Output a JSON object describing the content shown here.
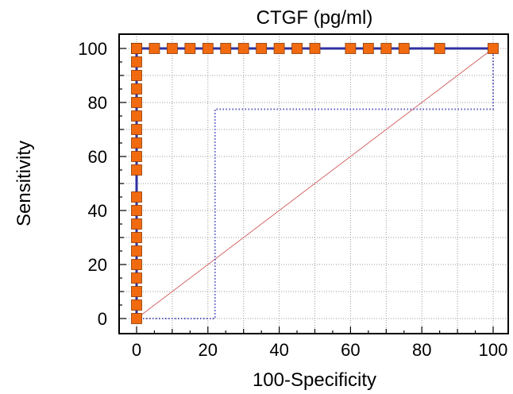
{
  "chart_data": {
    "type": "line",
    "title": "CTGF (pg/ml)",
    "xlabel": "100-Specificity",
    "ylabel": "Sensitivity",
    "xlim": [
      0,
      100
    ],
    "ylim": [
      0,
      100
    ],
    "xticks": [
      "0",
      "20",
      "40",
      "60",
      "80",
      "100"
    ],
    "yticks": [
      "0",
      "20",
      "40",
      "60",
      "80",
      "100"
    ],
    "grid": true,
    "legend": "none",
    "series": [
      {
        "style": "solid",
        "markers": "square",
        "color": "#3030a0",
        "marker_color": "#f26a10",
        "x": [
          0,
          0,
          0,
          0,
          0,
          0,
          0,
          0,
          0,
          0,
          0,
          0,
          0,
          0,
          0,
          0,
          0,
          0,
          0,
          0,
          0,
          0,
          5,
          10,
          15,
          20,
          25,
          30,
          35,
          40,
          45,
          50,
          60,
          65,
          70,
          75,
          85,
          100
        ],
        "y": [
          0,
          5,
          10,
          15,
          20,
          25,
          30,
          35,
          40,
          45,
          55,
          60,
          65,
          70,
          75,
          80,
          85,
          90,
          95,
          100,
          100,
          100,
          100,
          100,
          100,
          100,
          100,
          100,
          100,
          100,
          100,
          100,
          100,
          100,
          100,
          100,
          100,
          100
        ]
      },
      {
        "style": "dotted",
        "color": "#5858c0",
        "x": [
          0,
          22,
          22,
          100,
          100
        ],
        "y": [
          0,
          0,
          77.5,
          77.5,
          100
        ]
      },
      {
        "style": "thin-diagonal",
        "color": "#d05a5a",
        "x": [
          0,
          100
        ],
        "y": [
          0,
          100
        ]
      }
    ]
  }
}
